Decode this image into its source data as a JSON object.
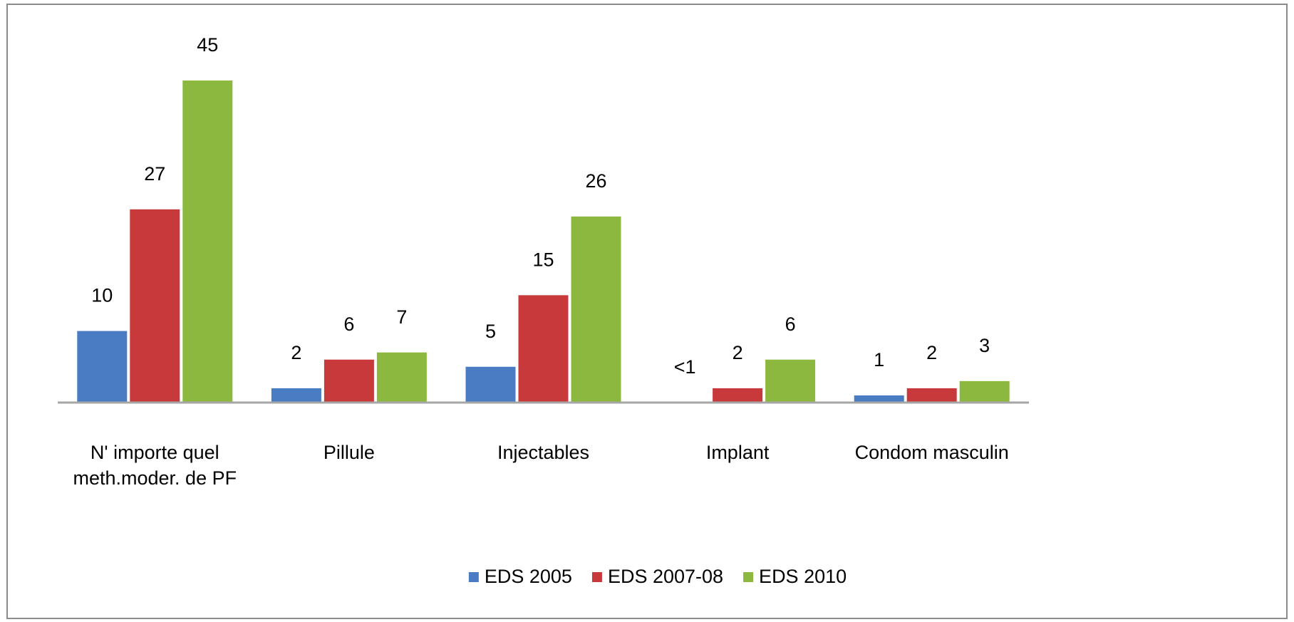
{
  "chart_data": {
    "type": "bar",
    "categories": [
      "N' importe quel meth.moder. de PF",
      "Pillule",
      "Injectables",
      "Implant",
      "Condom masculin"
    ],
    "series": [
      {
        "name": "EDS 2005",
        "color": "#4a7cc4",
        "values": [
          10,
          2,
          5,
          0,
          1
        ],
        "value_labels": [
          "10",
          "2",
          "5",
          "<1",
          "1"
        ]
      },
      {
        "name": "EDS 2007-08",
        "color": "#c8393b",
        "values": [
          27,
          6,
          15,
          2,
          2
        ]
      },
      {
        "name": "EDS 2010",
        "color": "#8db83f",
        "values": [
          45,
          7,
          26,
          6,
          3
        ]
      }
    ],
    "legend": "bottom"
  }
}
